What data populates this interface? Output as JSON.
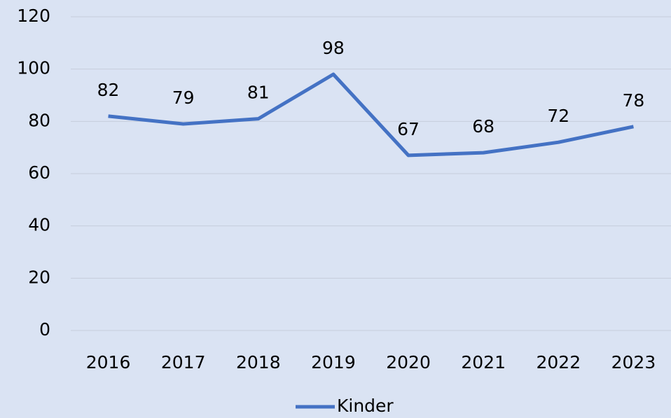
{
  "chart_data": {
    "type": "line",
    "categories": [
      "2016",
      "2017",
      "2018",
      "2019",
      "2020",
      "2021",
      "2022",
      "2023"
    ],
    "series": [
      {
        "name": "Kinder",
        "color": "#4472c4",
        "values": [
          82,
          79,
          81,
          98,
          67,
          68,
          72,
          78
        ]
      }
    ],
    "ylim": [
      0,
      120
    ],
    "yticks": [
      0,
      20,
      40,
      60,
      80,
      100,
      120
    ],
    "grid": true,
    "legend": "bottom"
  }
}
